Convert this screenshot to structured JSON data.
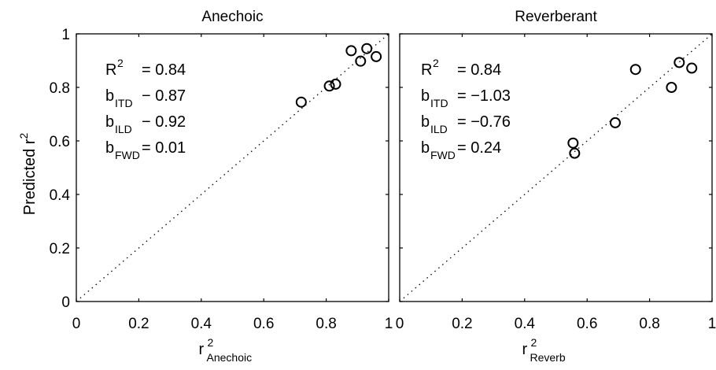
{
  "chart_data": [
    {
      "type": "scatter",
      "title": "Anechoic",
      "xlabel": {
        "base": "r",
        "sup": "2",
        "sub": "Anechoic"
      },
      "ylabel": {
        "base": "Predicted r",
        "sup": "2"
      },
      "xlim": [
        0,
        1
      ],
      "ylim": [
        0,
        1
      ],
      "xticks": [
        "0",
        "0.2",
        "0.4",
        "0.6",
        "0.8",
        "1"
      ],
      "yticks": [
        "0",
        "0.2",
        "0.4",
        "0.6",
        "0.8",
        "1"
      ],
      "reference_line": "dotted y = x",
      "grid": false,
      "marker": "open circle",
      "points": [
        {
          "x": 0.72,
          "y": 0.745
        },
        {
          "x": 0.81,
          "y": 0.805
        },
        {
          "x": 0.83,
          "y": 0.812
        },
        {
          "x": 0.88,
          "y": 0.937
        },
        {
          "x": 0.91,
          "y": 0.898
        },
        {
          "x": 0.93,
          "y": 0.945
        },
        {
          "x": 0.96,
          "y": 0.915
        }
      ],
      "annotations": [
        {
          "base": "R",
          "sup": "2",
          "sub": "",
          "text": "= 0.84"
        },
        {
          "base": "b",
          "sup": "",
          "sub": "ITD",
          "text": "− 0.87"
        },
        {
          "base": "b",
          "sup": "",
          "sub": "ILD",
          "text": "− 0.92"
        },
        {
          "base": "b",
          "sup": "",
          "sub": "FWD",
          "text": "= 0.01"
        }
      ]
    },
    {
      "type": "scatter",
      "title": "Reverberant",
      "xlabel": {
        "base": "r",
        "sup": "2",
        "sub": "Reverb"
      },
      "ylabel": {
        "base": "",
        "sup": ""
      },
      "xlim": [
        0,
        1
      ],
      "ylim": [
        0,
        1
      ],
      "xticks": [
        "0",
        "0.2",
        "0.4",
        "0.6",
        "0.8",
        "1"
      ],
      "yticks": [],
      "reference_line": "dotted y = x",
      "grid": false,
      "marker": "open circle",
      "points": [
        {
          "x": 0.555,
          "y": 0.592
        },
        {
          "x": 0.56,
          "y": 0.554
        },
        {
          "x": 0.69,
          "y": 0.668
        },
        {
          "x": 0.755,
          "y": 0.867
        },
        {
          "x": 0.87,
          "y": 0.8
        },
        {
          "x": 0.895,
          "y": 0.893
        },
        {
          "x": 0.935,
          "y": 0.872
        }
      ],
      "annotations": [
        {
          "base": "R",
          "sup": "2",
          "sub": "",
          "text": "= 0.84"
        },
        {
          "base": "b",
          "sup": "",
          "sub": "ITD",
          "text": "= −1.03"
        },
        {
          "base": "b",
          "sup": "",
          "sub": "ILD",
          "text": "= −0.76"
        },
        {
          "base": "b",
          "sup": "",
          "sub": "FWD",
          "text": "= 0.24"
        }
      ]
    }
  ]
}
